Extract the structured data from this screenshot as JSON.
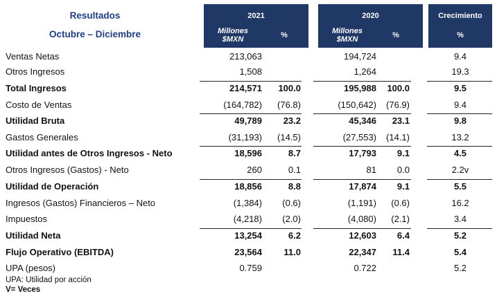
{
  "header": {
    "title_line1": "Resultados",
    "title_line2": "Octubre – Diciembre",
    "col_2021": "2021",
    "col_2020": "2020",
    "col_growth": "Crecimiento",
    "unit_line1": "Millones",
    "unit_line2": "$MXN",
    "pct": "%"
  },
  "rows": [
    {
      "label": "Ventas Netas",
      "v21": "213,063",
      "p21": "",
      "v20": "194,724",
      "p20": "",
      "g": "9.4",
      "bold": false,
      "border": false
    },
    {
      "label": "Otros Ingresos",
      "v21": "1,508",
      "p21": "",
      "v20": "1,264",
      "p20": "",
      "g": "19.3",
      "bold": false,
      "border": false
    },
    {
      "label": "Total Ingresos",
      "v21": "214,571",
      "p21": "100.0",
      "v20": "195,988",
      "p20": "100.0",
      "g": "9.5",
      "bold": true,
      "border": true
    },
    {
      "label": "Costo de Ventas",
      "v21": "(164,782)",
      "p21": "(76.8)",
      "v20": "(150,642)",
      "p20": "(76.9)",
      "g": "9.4",
      "bold": false,
      "border": false
    },
    {
      "label": "Utilidad Bruta",
      "v21": "49,789",
      "p21": "23.2",
      "v20": "45,346",
      "p20": "23.1",
      "g": "9.8",
      "bold": true,
      "border": true
    },
    {
      "label": "Gastos Generales",
      "v21": "(31,193)",
      "p21": "(14.5)",
      "v20": "(27,553)",
      "p20": "(14.1)",
      "g": "13.2",
      "bold": false,
      "border": false
    },
    {
      "label": "Utilidad antes de Otros Ingresos - Neto",
      "v21": "18,596",
      "p21": "8.7",
      "v20": "17,793",
      "p20": "9.1",
      "g": "4.5",
      "bold": true,
      "border": true
    },
    {
      "label": "Otros Ingresos (Gastos) - Neto",
      "v21": "260",
      "p21": "0.1",
      "v20": "81",
      "p20": "0.0",
      "g": "2.2v",
      "bold": false,
      "border": false
    },
    {
      "label": "Utilidad de Operación",
      "v21": "18,856",
      "p21": "8.8",
      "v20": "17,874",
      "p20": "9.1",
      "g": "5.5",
      "bold": true,
      "border": true
    },
    {
      "label": "Ingresos (Gastos) Financieros – Neto",
      "v21": "(1,384)",
      "p21": "(0.6)",
      "v20": "(1,191)",
      "p20": "(0.6)",
      "g": "16.2",
      "bold": false,
      "border": false
    },
    {
      "label": "Impuestos",
      "v21": "(4,218)",
      "p21": "(2.0)",
      "v20": "(4,080)",
      "p20": "(2.1)",
      "g": "3.4",
      "bold": false,
      "border": false
    },
    {
      "label": "Utilidad Neta",
      "v21": "13,254",
      "p21": "6.2",
      "v20": "12,603",
      "p20": "6.4",
      "g": "5.2",
      "bold": true,
      "border": true
    },
    {
      "label": "Flujo Operativo (EBITDA)",
      "v21": "23,564",
      "p21": "11.0",
      "v20": "22,347",
      "p20": "11.4",
      "g": "5.4",
      "bold": true,
      "border": false
    },
    {
      "label": "UPA (pesos)",
      "v21": "0.759",
      "p21": "",
      "v20": "0.722",
      "p20": "",
      "g": "5.2",
      "bold": false,
      "border": false
    }
  ],
  "footnotes": {
    "note1": "UPA:  Utilidad por acción",
    "note2": "V= Veces"
  }
}
